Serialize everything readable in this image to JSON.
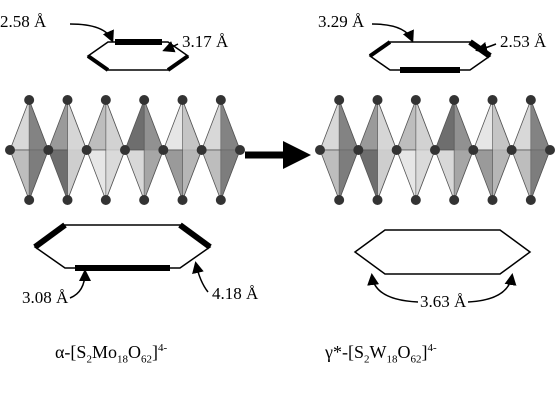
{
  "left": {
    "distances": [
      "2.58 Å",
      "3.17 Å",
      "3.08 Å",
      "4.18 Å"
    ],
    "formula": [
      "α-[S",
      "2",
      "Mo",
      "18",
      "O",
      "62",
      "]",
      "4-"
    ]
  },
  "right": {
    "distances": [
      "3.29 Å",
      "2.53 Å",
      "3.63 Å"
    ],
    "formula": [
      "γ*-[S",
      "2",
      "W",
      "18",
      "O",
      "62",
      "]",
      "4-"
    ]
  }
}
